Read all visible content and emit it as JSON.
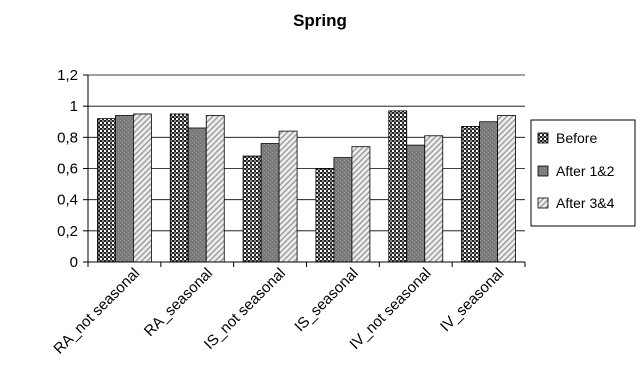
{
  "chart_data": {
    "type": "bar",
    "title": "Spring",
    "xlabel": "",
    "ylabel": "",
    "ylim": [
      0,
      1.2
    ],
    "yticks": [
      "0",
      "0,2",
      "0,4",
      "0,6",
      "0,8",
      "1",
      "1,2"
    ],
    "grid": true,
    "legend_position": "right",
    "categories": [
      "RA_not seasonal",
      "RA_seasonal",
      "IS_not seasonal",
      "IS_seasonal",
      "IV_not seasonal",
      "IV_seasonal"
    ],
    "series": [
      {
        "name": "Before",
        "values": [
          0.92,
          0.95,
          0.68,
          0.6,
          0.97,
          0.87
        ]
      },
      {
        "name": "After 1&2",
        "values": [
          0.94,
          0.86,
          0.76,
          0.67,
          0.75,
          0.9
        ]
      },
      {
        "name": "After 3&4",
        "values": [
          0.95,
          0.94,
          0.84,
          0.74,
          0.81,
          0.94
        ]
      }
    ],
    "colors": {
      "Before": "#555555",
      "After 1&2": "#808080",
      "After 3&4": "#d8d8d8"
    }
  }
}
